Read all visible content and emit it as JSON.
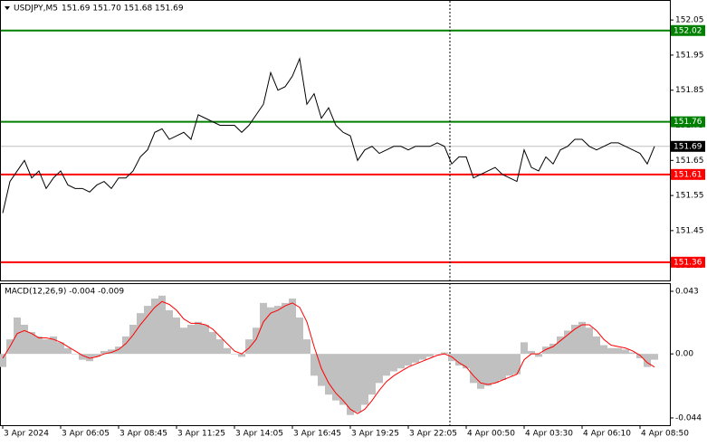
{
  "chart_data": [
    {
      "type": "line",
      "title": "USDJPY,M5",
      "subtitle": "151.69 151.70 151.68 151.69",
      "color": "#000000",
      "values": [
        151.5,
        151.59,
        151.62,
        151.65,
        151.6,
        151.62,
        151.57,
        151.6,
        151.62,
        151.58,
        151.57,
        151.57,
        151.56,
        151.58,
        151.59,
        151.57,
        151.6,
        151.6,
        151.62,
        151.66,
        151.68,
        151.73,
        151.74,
        151.71,
        151.72,
        151.73,
        151.71,
        151.78,
        151.77,
        151.76,
        151.75,
        151.75,
        151.75,
        151.73,
        151.75,
        151.78,
        151.81,
        151.9,
        151.85,
        151.86,
        151.89,
        151.94,
        151.81,
        151.84,
        151.77,
        151.8,
        151.75,
        151.73,
        151.72,
        151.65,
        151.68,
        151.69,
        151.67,
        151.68,
        151.69,
        151.69,
        151.68,
        151.69,
        151.69,
        151.69,
        151.7,
        151.69,
        151.64,
        151.66,
        151.66,
        151.6,
        151.61,
        151.62,
        151.63,
        151.61,
        151.6,
        151.59,
        151.68,
        151.63,
        151.62,
        151.66,
        151.64,
        151.68,
        151.69,
        151.71,
        151.71,
        151.69,
        151.68,
        151.69,
        151.7,
        151.7,
        151.69,
        151.68,
        151.67,
        151.64,
        151.69
      ],
      "ylim": [
        151.308,
        152.107
      ],
      "yticks": [
        152.05,
        151.95,
        151.85,
        151.75,
        151.65,
        151.55,
        151.45,
        151.35
      ],
      "levels": [
        {
          "value": 152.02,
          "color": "#008000"
        },
        {
          "value": 151.76,
          "color": "#008000"
        },
        {
          "value": 151.69,
          "color": "#c0c0c0",
          "label_color": "#000000"
        },
        {
          "value": 151.61,
          "color": "#ff0000"
        },
        {
          "value": 151.36,
          "color": "#ff0000"
        }
      ]
    },
    {
      "type": "macd",
      "title": "MACD(12,26,9) -0.004 -0.009",
      "categories": [
        "3 Apr 2024",
        null,
        null,
        null,
        null,
        null,
        null,
        null,
        "3 Apr 06:05",
        null,
        null,
        null,
        null,
        null,
        null,
        null,
        "3 Apr 08:45",
        null,
        null,
        null,
        null,
        null,
        null,
        null,
        "3 Apr 11:25",
        null,
        null,
        null,
        null,
        null,
        null,
        null,
        "3 Apr 14:05",
        null,
        null,
        null,
        null,
        null,
        null,
        null,
        "3 Apr 16:45",
        null,
        null,
        null,
        null,
        null,
        null,
        null,
        "3 Apr 19:25",
        null,
        null,
        null,
        null,
        null,
        null,
        null,
        "3 Apr 22:05",
        null,
        null,
        null,
        null,
        null,
        null,
        null,
        "4 Apr 00:50",
        null,
        null,
        null,
        null,
        null,
        null,
        null,
        "4 Apr 03:30",
        null,
        null,
        null,
        null,
        null,
        null,
        null,
        "4 Apr 06:10",
        null,
        null,
        null,
        null,
        null,
        null,
        null,
        "4 Apr 08:50",
        null,
        null
      ],
      "series": [
        {
          "type": "bar",
          "color": "#c0c0c0",
          "values": [
            -0.009,
            0.01,
            0.025,
            0.02,
            0.015,
            0.012,
            0.01,
            0.012,
            0.008,
            0.004,
            0.0,
            -0.004,
            -0.005,
            -0.002,
            0.002,
            0.003,
            0.005,
            0.012,
            0.02,
            0.028,
            0.033,
            0.038,
            0.04,
            0.03,
            0.025,
            0.018,
            0.02,
            0.022,
            0.02,
            0.015,
            0.01,
            0.004,
            0.0,
            -0.002,
            0.01,
            0.018,
            0.035,
            0.032,
            0.033,
            0.035,
            0.038,
            0.025,
            0.01,
            -0.015,
            -0.022,
            -0.028,
            -0.032,
            -0.035,
            -0.042,
            -0.04,
            -0.035,
            -0.028,
            -0.02,
            -0.015,
            -0.012,
            -0.01,
            -0.008,
            -0.006,
            -0.004,
            -0.002,
            0.0,
            0.001,
            -0.005,
            -0.008,
            -0.01,
            -0.02,
            -0.024,
            -0.022,
            -0.02,
            -0.018,
            -0.015,
            -0.014,
            0.008,
            0.002,
            -0.002,
            0.005,
            0.007,
            0.012,
            0.016,
            0.02,
            0.022,
            0.018,
            0.012,
            0.006,
            0.004,
            0.004,
            0.003,
            0.001,
            -0.003,
            -0.009,
            -0.004
          ]
        },
        {
          "type": "line",
          "color": "#ff0000",
          "values": [
            -0.003,
            0.005,
            0.014,
            0.016,
            0.014,
            0.011,
            0.011,
            0.01,
            0.008,
            0.005,
            0.002,
            -0.001,
            -0.003,
            -0.002,
            0.0,
            0.001,
            0.003,
            0.007,
            0.013,
            0.02,
            0.026,
            0.032,
            0.036,
            0.034,
            0.03,
            0.024,
            0.021,
            0.021,
            0.02,
            0.017,
            0.012,
            0.007,
            0.002,
            0.0,
            0.004,
            0.01,
            0.022,
            0.028,
            0.03,
            0.033,
            0.035,
            0.032,
            0.022,
            0.005,
            -0.01,
            -0.02,
            -0.027,
            -0.032,
            -0.038,
            -0.041,
            -0.038,
            -0.032,
            -0.025,
            -0.019,
            -0.015,
            -0.012,
            -0.009,
            -0.007,
            -0.005,
            -0.003,
            -0.001,
            0.0,
            -0.002,
            -0.006,
            -0.009,
            -0.015,
            -0.02,
            -0.021,
            -0.02,
            -0.018,
            -0.016,
            -0.014,
            -0.004,
            0.0,
            0.0,
            0.003,
            0.005,
            0.009,
            0.013,
            0.017,
            0.02,
            0.02,
            0.016,
            0.01,
            0.006,
            0.005,
            0.004,
            0.002,
            -0.001,
            -0.006,
            -0.009
          ]
        }
      ],
      "ylim": [
        -0.049,
        0.0486
      ],
      "yticks": [
        0.043,
        {
          "value": 0,
          "label": "0.00"
        },
        -0.044
      ]
    }
  ]
}
